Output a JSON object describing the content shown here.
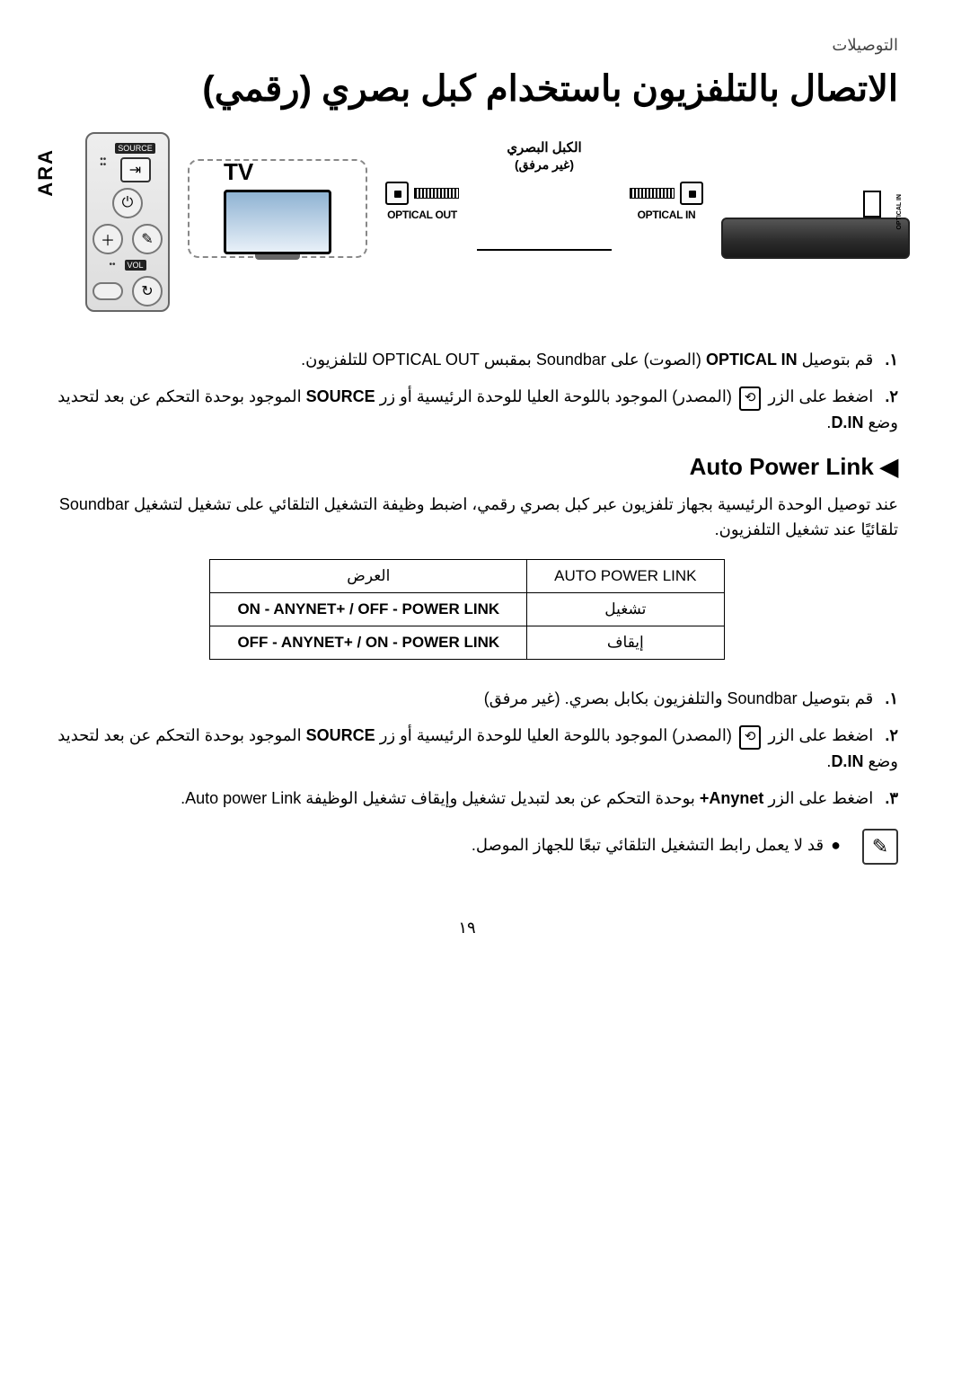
{
  "header": {
    "section_label": "التوصيلات"
  },
  "title": "الاتصال بالتلفزيون باستخدام كبل بصري (رقمي)",
  "side_tab": "ARA",
  "diagram": {
    "remote": {
      "source_badge": "SOURCE",
      "vol_badge": "VOL"
    },
    "tv_label": "TV",
    "cable_label_1": "الكبل البصري",
    "cable_label_2": "(غير مرفق)",
    "optical_out": "OPTICAL OUT",
    "optical_in": "OPTICAL IN",
    "soundbar_port": "OPTICAL IN"
  },
  "steps1": [
    {
      "num": "١.",
      "text_before": "قم بتوصيل ",
      "bold1": "OPTICAL IN",
      "text_mid": " (الصوت) على Soundbar بمقبس OPTICAL OUT للتلفزيون."
    },
    {
      "num": "٢.",
      "text_before": "اضغط على الزر ",
      "icon": "⟲",
      "text_mid": " (المصدر) الموجود باللوحة العليا للوحدة الرئيسية أو زر ",
      "bold1": "SOURCE",
      "text_after": " الموجود بوحدة التحكم عن بعد لتحديد وضع ",
      "bold2": "D.IN",
      "tail": "."
    }
  ],
  "auto_power": {
    "heading": "◀ Auto Power Link",
    "intro": "عند توصيل الوحدة الرئيسية بجهاز تلفزيون عبر كبل بصري رقمي، اضبط وظيفة التشغيل التلقائي على تشغيل لتشغيل Soundbar تلقائيًا عند تشغيل التلفزيون.",
    "table": {
      "col1_head": "AUTO POWER LINK",
      "col2_head": "العرض",
      "rows": [
        {
          "c1": "تشغيل",
          "c2": "ON - ANYNET+ / OFF - POWER LINK"
        },
        {
          "c1": "إيقاف",
          "c2": "OFF - ANYNET+ / ON - POWER LINK"
        }
      ]
    }
  },
  "steps2": [
    {
      "num": "١.",
      "text": "قم بتوصيل Soundbar والتلفزيون بكابل بصري. (غير مرفق)"
    },
    {
      "num": "٢.",
      "text_before": "اضغط على الزر ",
      "icon": "⟲",
      "text_mid": " (المصدر) الموجود باللوحة العليا للوحدة الرئيسية أو زر ",
      "bold1": "SOURCE",
      "text_after": " الموجود بوحدة التحكم عن بعد لتحديد وضع ",
      "bold2": "D.IN",
      "tail": "."
    },
    {
      "num": "٣.",
      "text_before": "اضغط على الزر ",
      "bold1": "Anynet+",
      "text_after": " بوحدة التحكم عن بعد لتبديل تشغيل وإيقاف تشغيل الوظيفة Auto power Link."
    }
  ],
  "note": {
    "text": "قد لا يعمل رابط التشغيل التلقائي تبعًا للجهاز الموصل."
  },
  "page_number": "١٩"
}
